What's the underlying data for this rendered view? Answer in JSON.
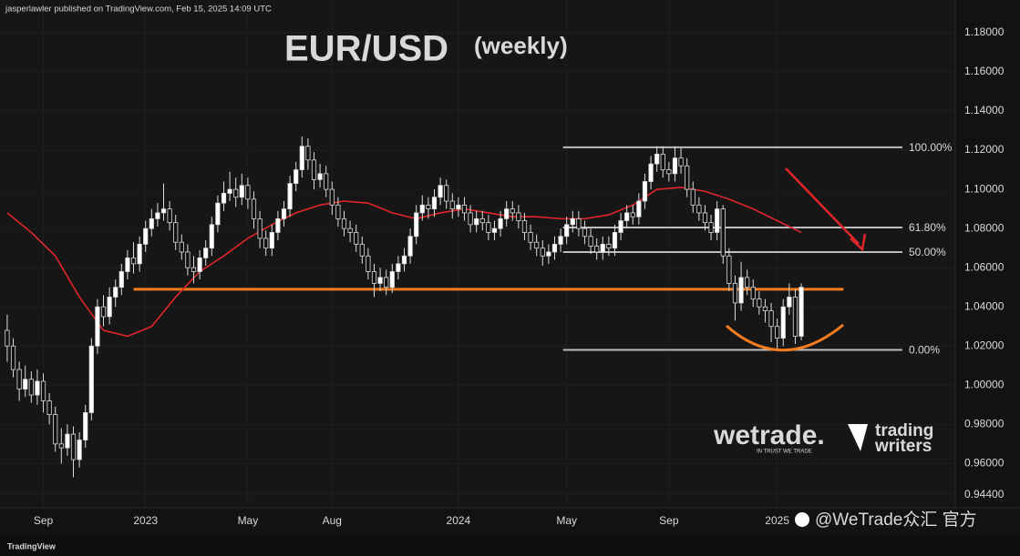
{
  "header": "jasperlawler published on TradingView.com, Feb 15, 2025 14:09 UTC",
  "footer": "TradingView",
  "watermarks": {
    "brand": "wetrade.",
    "tagline": "IN TRUST WE TRADE",
    "partner_line1": "trading",
    "partner_line2": "writers",
    "handle": "@WeTrade众汇 官方"
  },
  "chart_data": {
    "type": "candlestick",
    "title": "EUR/USD",
    "subtitle": "(weekly)",
    "up_color": "#ffffff",
    "down_color": "#111111",
    "wick_color": "#dcdcdc",
    "open": [
      1.028,
      1.02,
      1.008,
      0.998,
      1.003,
      0.995,
      1.002,
      0.992,
      0.985,
      0.97,
      0.968,
      0.975,
      0.962,
      0.972,
      0.986,
      1.02,
      1.04,
      1.035,
      1.045,
      1.05,
      1.058,
      1.065,
      1.062,
      1.072,
      1.08,
      1.085,
      1.088,
      1.09,
      1.083,
      1.073,
      1.068,
      1.06,
      1.058,
      1.065,
      1.07,
      1.082,
      1.093,
      1.098,
      1.1,
      1.096,
      1.102,
      1.095,
      1.085,
      1.075,
      1.07,
      1.078,
      1.085,
      1.09,
      1.103,
      1.11,
      1.122,
      1.115,
      1.105,
      1.108,
      1.1,
      1.092,
      1.085,
      1.08,
      1.078,
      1.072,
      1.066,
      1.058,
      1.052,
      1.055,
      1.05,
      1.058,
      1.062,
      1.066,
      1.076,
      1.088,
      1.092,
      1.09,
      1.096,
      1.102,
      1.094,
      1.09,
      1.092,
      1.088,
      1.082,
      1.085,
      1.083,
      1.078,
      1.08,
      1.085,
      1.09,
      1.088,
      1.084,
      1.078,
      1.073,
      1.07,
      1.066,
      1.068,
      1.072,
      1.076,
      1.082,
      1.085,
      1.08,
      1.076,
      1.071,
      1.068,
      1.072,
      1.07,
      1.078,
      1.084,
      1.088,
      1.086,
      1.094,
      1.104,
      1.113,
      1.118,
      1.11,
      1.108,
      1.116,
      1.112,
      1.1,
      1.092,
      1.088,
      1.083,
      1.078,
      1.09,
      1.066,
      1.052,
      1.042,
      1.055,
      1.05,
      1.044,
      1.04,
      1.038,
      1.03,
      1.024,
      1.04,
      1.045,
      1.025
    ],
    "high": [
      1.036,
      1.024,
      1.012,
      1.01,
      1.007,
      1.008,
      1.006,
      0.996,
      0.989,
      0.978,
      0.98,
      0.979,
      0.976,
      0.99,
      1.024,
      1.044,
      1.046,
      1.05,
      1.054,
      1.062,
      1.069,
      1.073,
      1.076,
      1.084,
      1.09,
      1.093,
      1.103,
      1.094,
      1.087,
      1.077,
      1.072,
      1.066,
      1.069,
      1.074,
      1.086,
      1.097,
      1.104,
      1.109,
      1.106,
      1.108,
      1.106,
      1.099,
      1.089,
      1.079,
      1.082,
      1.089,
      1.094,
      1.107,
      1.114,
      1.127,
      1.126,
      1.119,
      1.113,
      1.112,
      1.104,
      1.096,
      1.089,
      1.084,
      1.082,
      1.076,
      1.07,
      1.062,
      1.06,
      1.059,
      1.062,
      1.066,
      1.07,
      1.08,
      1.092,
      1.097,
      1.096,
      1.1,
      1.106,
      1.105,
      1.098,
      1.096,
      1.096,
      1.092,
      1.089,
      1.089,
      1.087,
      1.084,
      1.089,
      1.094,
      1.094,
      1.092,
      1.088,
      1.082,
      1.077,
      1.074,
      1.072,
      1.076,
      1.08,
      1.086,
      1.089,
      1.089,
      1.084,
      1.08,
      1.075,
      1.076,
      1.076,
      1.082,
      1.088,
      1.092,
      1.092,
      1.098,
      1.108,
      1.117,
      1.122,
      1.122,
      1.114,
      1.122,
      1.121,
      1.116,
      1.104,
      1.096,
      1.092,
      1.087,
      1.094,
      1.092,
      1.07,
      1.056,
      1.063,
      1.059,
      1.054,
      1.048,
      1.044,
      1.042,
      1.034,
      1.044,
      1.052,
      1.049,
      1.052
    ],
    "low": [
      1.012,
      1.004,
      0.992,
      0.994,
      0.991,
      0.99,
      0.986,
      0.98,
      0.966,
      0.96,
      0.964,
      0.953,
      0.958,
      0.968,
      0.982,
      1.016,
      1.03,
      1.031,
      1.04,
      1.046,
      1.054,
      1.057,
      1.058,
      1.068,
      1.076,
      1.081,
      1.084,
      1.079,
      1.069,
      1.064,
      1.056,
      1.052,
      1.054,
      1.061,
      1.066,
      1.078,
      1.089,
      1.094,
      1.091,
      1.092,
      1.09,
      1.08,
      1.07,
      1.066,
      1.066,
      1.074,
      1.081,
      1.086,
      1.099,
      1.106,
      1.11,
      1.1,
      1.101,
      1.096,
      1.087,
      1.081,
      1.076,
      1.073,
      1.068,
      1.062,
      1.054,
      1.045,
      1.048,
      1.046,
      1.047,
      1.054,
      1.058,
      1.062,
      1.072,
      1.084,
      1.085,
      1.086,
      1.092,
      1.09,
      1.085,
      1.086,
      1.084,
      1.078,
      1.078,
      1.079,
      1.074,
      1.074,
      1.076,
      1.081,
      1.084,
      1.08,
      1.074,
      1.069,
      1.066,
      1.061,
      1.062,
      1.064,
      1.068,
      1.072,
      1.078,
      1.076,
      1.072,
      1.067,
      1.064,
      1.064,
      1.066,
      1.066,
      1.074,
      1.08,
      1.082,
      1.082,
      1.09,
      1.1,
      1.109,
      1.106,
      1.104,
      1.104,
      1.108,
      1.096,
      1.088,
      1.084,
      1.079,
      1.074,
      1.074,
      1.062,
      1.048,
      1.033,
      1.038,
      1.046,
      1.04,
      1.036,
      1.032,
      1.022,
      1.018,
      1.02,
      1.036,
      1.021,
      1.023
    ],
    "close": [
      1.02,
      1.008,
      0.998,
      1.003,
      0.995,
      1.002,
      0.992,
      0.985,
      0.97,
      0.968,
      0.975,
      0.962,
      0.972,
      0.986,
      1.02,
      1.04,
      1.035,
      1.045,
      1.05,
      1.058,
      1.065,
      1.062,
      1.072,
      1.08,
      1.085,
      1.088,
      1.09,
      1.083,
      1.073,
      1.068,
      1.06,
      1.058,
      1.065,
      1.07,
      1.082,
      1.093,
      1.098,
      1.1,
      1.096,
      1.102,
      1.095,
      1.085,
      1.075,
      1.07,
      1.078,
      1.085,
      1.09,
      1.103,
      1.11,
      1.122,
      1.115,
      1.105,
      1.108,
      1.1,
      1.092,
      1.085,
      1.08,
      1.078,
      1.072,
      1.066,
      1.058,
      1.052,
      1.055,
      1.05,
      1.058,
      1.062,
      1.066,
      1.076,
      1.088,
      1.092,
      1.09,
      1.096,
      1.102,
      1.094,
      1.09,
      1.092,
      1.088,
      1.082,
      1.085,
      1.083,
      1.078,
      1.08,
      1.085,
      1.09,
      1.088,
      1.084,
      1.078,
      1.073,
      1.07,
      1.066,
      1.068,
      1.072,
      1.076,
      1.082,
      1.085,
      1.08,
      1.076,
      1.071,
      1.068,
      1.072,
      1.07,
      1.078,
      1.084,
      1.088,
      1.086,
      1.094,
      1.104,
      1.113,
      1.118,
      1.11,
      1.108,
      1.116,
      1.112,
      1.1,
      1.092,
      1.088,
      1.083,
      1.078,
      1.09,
      1.066,
      1.052,
      1.042,
      1.055,
      1.05,
      1.044,
      1.04,
      1.038,
      1.03,
      1.024,
      1.04,
      1.045,
      1.025,
      1.05
    ],
    "moving_average": {
      "color": "#e0262b",
      "x": [
        0,
        4,
        8,
        12,
        16,
        20,
        24,
        28,
        32,
        36,
        40,
        44,
        48,
        52,
        56,
        60,
        64,
        68,
        72,
        76,
        80,
        84,
        88,
        92,
        96,
        100,
        104,
        108,
        112,
        116,
        120,
        124,
        128,
        132
      ],
      "values": [
        1.088,
        1.078,
        1.066,
        1.045,
        1.028,
        1.025,
        1.03,
        1.045,
        1.058,
        1.066,
        1.075,
        1.082,
        1.088,
        1.092,
        1.094,
        1.093,
        1.088,
        1.085,
        1.088,
        1.09,
        1.088,
        1.086,
        1.086,
        1.085,
        1.085,
        1.087,
        1.092,
        1.1,
        1.101,
        1.099,
        1.095,
        1.09,
        1.084,
        1.078
      ]
    },
    "support": {
      "value": 1.049,
      "x_range": [
        21,
        139
      ],
      "color": "#f57c1f"
    },
    "fib_levels": [
      {
        "label": "100.00%",
        "value": 1.1215
      },
      {
        "label": "61.80%",
        "value": 1.0805
      },
      {
        "label": "50.00%",
        "value": 1.068
      },
      {
        "label": "0.00%",
        "value": 1.018
      }
    ],
    "fib_x_range": [
      92.4,
      148.8
    ],
    "fib_color": "#bdbdbd",
    "xlim": [
      -1.2,
      157.6
    ],
    "xticks": [
      {
        "value": 6,
        "label": "Sep"
      },
      {
        "value": 23,
        "label": "2023"
      },
      {
        "value": 40,
        "label": "May"
      },
      {
        "value": 54,
        "label": "Aug"
      },
      {
        "value": 75,
        "label": "2024"
      },
      {
        "value": 93,
        "label": "May"
      },
      {
        "value": 110,
        "label": "Sep"
      },
      {
        "value": 128,
        "label": "2025"
      }
    ],
    "ylim": [
      0.9374,
      1.1967
    ],
    "yticks": [
      {
        "value": 1.18,
        "label": "1.18000"
      },
      {
        "value": 1.16,
        "label": "1.16000"
      },
      {
        "value": 1.14,
        "label": "1.14000"
      },
      {
        "value": 1.12,
        "label": "1.12000"
      },
      {
        "value": 1.1,
        "label": "1.10000"
      },
      {
        "value": 1.08,
        "label": "1.08000"
      },
      {
        "value": 1.06,
        "label": "1.06000"
      },
      {
        "value": 1.04,
        "label": "1.04000"
      },
      {
        "value": 1.02,
        "label": "1.02000"
      },
      {
        "value": 1.0,
        "label": "1.00000"
      },
      {
        "value": 0.98,
        "label": "0.98000"
      },
      {
        "value": 0.96,
        "label": "0.96000"
      },
      {
        "value": 0.944,
        "label": "0.94400"
      }
    ],
    "grid": true
  }
}
